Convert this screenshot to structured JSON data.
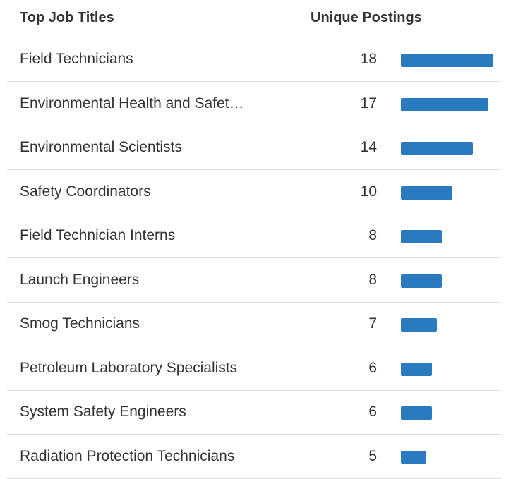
{
  "table": {
    "headers": [
      "Top Job Titles",
      "Unique Postings"
    ],
    "bar_color": "#2a7abf",
    "rows": [
      {
        "title": "Field Technicians",
        "postings": 18
      },
      {
        "title": "Environmental Health and Safet…",
        "postings": 17
      },
      {
        "title": "Environmental Scientists",
        "postings": 14
      },
      {
        "title": "Safety Coordinators",
        "postings": 10
      },
      {
        "title": "Field Technician Interns",
        "postings": 8
      },
      {
        "title": "Launch Engineers",
        "postings": 8
      },
      {
        "title": "Smog Technicians",
        "postings": 7
      },
      {
        "title": "Petroleum Laboratory Specialists",
        "postings": 6
      },
      {
        "title": "System Safety Engineers",
        "postings": 6
      },
      {
        "title": "Radiation Protection Technicians",
        "postings": 5
      }
    ]
  }
}
